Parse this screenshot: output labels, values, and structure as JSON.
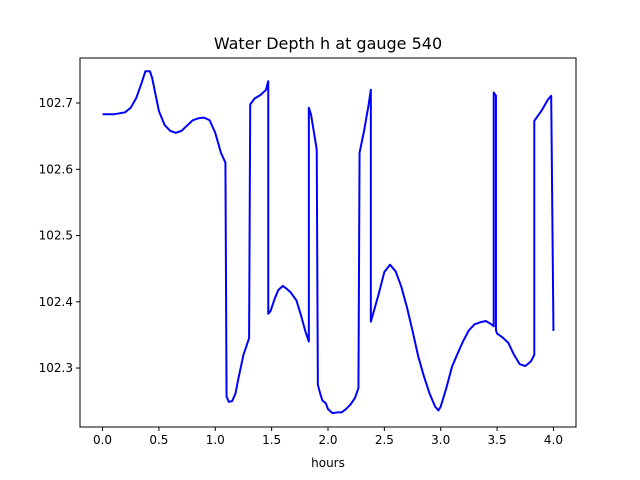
{
  "chart_data": {
    "type": "line",
    "title": "Water Depth h at gauge 540",
    "xlabel": "hours",
    "ylabel": "",
    "xlim": [
      -0.2,
      4.2
    ],
    "ylim": [
      102.211,
      102.768
    ],
    "x_ticks": [
      0.0,
      0.5,
      1.0,
      1.5,
      2.0,
      2.5,
      3.0,
      3.5,
      4.0
    ],
    "x_tick_labels": [
      "0.0",
      "0.5",
      "1.0",
      "1.5",
      "2.0",
      "2.5",
      "3.0",
      "3.5",
      "4.0"
    ],
    "y_ticks": [
      102.3,
      102.4,
      102.5,
      102.6,
      102.7
    ],
    "y_tick_labels": [
      "102.3",
      "102.4",
      "102.5",
      "102.6",
      "102.7"
    ],
    "grid": false,
    "legend": null,
    "series": [
      {
        "color": "#0000ff",
        "x": [
          0.0,
          0.1,
          0.2,
          0.25,
          0.3,
          0.35,
          0.38,
          0.42,
          0.44,
          0.47,
          0.5,
          0.55,
          0.6,
          0.65,
          0.7,
          0.75,
          0.8,
          0.85,
          0.9,
          0.95,
          1.0,
          1.05,
          1.09,
          1.1,
          1.12,
          1.15,
          1.18,
          1.2,
          1.25,
          1.3,
          1.31,
          1.35,
          1.4,
          1.45,
          1.47,
          1.47,
          1.49,
          1.53,
          1.56,
          1.6,
          1.63,
          1.67,
          1.72,
          1.76,
          1.8,
          1.83,
          1.83,
          1.85,
          1.9,
          1.91,
          1.93,
          1.95,
          1.98,
          2.0,
          2.04,
          2.08,
          2.12,
          2.16,
          2.2,
          2.24,
          2.27,
          2.28,
          2.32,
          2.36,
          2.38,
          2.38,
          2.4,
          2.45,
          2.5,
          2.55,
          2.6,
          2.65,
          2.7,
          2.75,
          2.8,
          2.85,
          2.9,
          2.95,
          2.98,
          3.0,
          3.05,
          3.1,
          3.15,
          3.2,
          3.25,
          3.3,
          3.35,
          3.4,
          3.45,
          3.47,
          3.47,
          3.49,
          3.49,
          3.5,
          3.55,
          3.6,
          3.65,
          3.7,
          3.75,
          3.8,
          3.83,
          3.83,
          3.9,
          3.95,
          3.98,
          3.98,
          4.0
        ],
        "y": [
          102.683,
          102.683,
          102.686,
          102.693,
          102.708,
          102.732,
          102.748,
          102.748,
          102.738,
          102.713,
          102.688,
          102.667,
          102.658,
          102.655,
          102.658,
          102.666,
          102.674,
          102.677,
          102.678,
          102.674,
          102.655,
          102.625,
          102.61,
          102.257,
          102.249,
          102.25,
          102.262,
          102.28,
          102.32,
          102.345,
          102.698,
          102.707,
          102.712,
          102.72,
          102.733,
          102.382,
          102.386,
          102.406,
          102.418,
          102.424,
          102.42,
          102.414,
          102.402,
          102.38,
          102.355,
          102.34,
          102.693,
          102.682,
          102.63,
          102.275,
          102.262,
          102.251,
          102.247,
          102.238,
          102.232,
          102.233,
          102.233,
          102.238,
          102.245,
          102.255,
          102.27,
          102.625,
          102.658,
          102.697,
          102.72,
          102.37,
          102.382,
          102.412,
          102.445,
          102.456,
          102.446,
          102.423,
          102.392,
          102.356,
          102.318,
          102.288,
          102.262,
          102.242,
          102.236,
          102.242,
          102.27,
          102.302,
          102.322,
          102.341,
          102.357,
          102.366,
          102.369,
          102.371,
          102.366,
          102.363,
          102.716,
          102.711,
          102.357,
          102.352,
          102.346,
          102.338,
          102.32,
          102.306,
          102.303,
          102.31,
          102.32,
          102.673,
          102.69,
          102.705,
          102.711,
          102.71,
          102.356
        ]
      }
    ]
  }
}
